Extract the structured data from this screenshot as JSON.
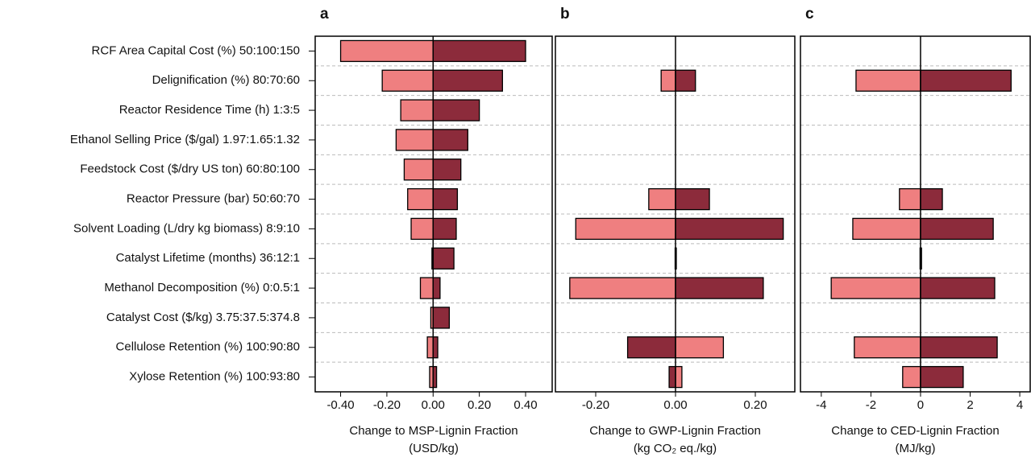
{
  "chart_data": [
    {
      "type": "tornado",
      "panel_label": "a",
      "categories": [
        "RCF Area Capital Cost (%) 50:100:150",
        "Delignification (%) 80:70:60",
        "Reactor Residence Time (h) 1:3:5",
        "Ethanol Selling Price ($/gal) 1.97:1.65:1.32",
        "Feedstock Cost ($/dry US ton) 60:80:100",
        "Reactor Pressure (bar) 50:60:70",
        "Solvent Loading (L/dry kg biomass) 8:9:10",
        "Catalyst Lifetime (months) 36:12:1",
        "Methanol Decomposition (%) 0:0.5:1",
        "Catalyst Cost ($/kg) 3.75:37.5:374.8",
        "Cellulose Retention (%) 100:90:80",
        "Xylose Retention (%) 100:93:80"
      ],
      "xlabel": [
        "Change to MSP-Lignin Fraction",
        "(USD/kg)"
      ],
      "xlim": [
        -0.51,
        0.515
      ],
      "xticks": [
        {
          "value": -0.4,
          "label": "-0.40"
        },
        {
          "value": -0.2,
          "label": "-0.20"
        },
        {
          "value": 0,
          "label": "0.00"
        },
        {
          "value": 0.2,
          "label": "0.20"
        },
        {
          "value": 0.4,
          "label": "0.40"
        }
      ],
      "series": [
        {
          "color": "#ef7f80",
          "values": [
            -0.4,
            -0.22,
            -0.14,
            -0.16,
            -0.125,
            -0.11,
            -0.095,
            -0.005,
            -0.055,
            -0.01,
            -0.025,
            -0.015
          ]
        },
        {
          "color": "#8c2b3b",
          "values": [
            0.4,
            0.3,
            0.2,
            0.15,
            0.12,
            0.105,
            0.1,
            0.09,
            0.03,
            0.07,
            0.02,
            0.015
          ]
        }
      ]
    },
    {
      "type": "tornado",
      "panel_label": "b",
      "xlabel": [
        "Change to GWP-Lignin Fraction",
        "(kg CO₂ eq./kg)"
      ],
      "xlim": [
        -0.301,
        0.299
      ],
      "xticks": [
        {
          "value": -0.2,
          "label": "-0.20"
        },
        {
          "value": 0,
          "label": "0.00"
        },
        {
          "value": 0.2,
          "label": "0.20"
        }
      ],
      "series": [
        {
          "color": "#ef7f80",
          "values": [
            null,
            -0.036,
            null,
            null,
            null,
            -0.067,
            -0.25,
            -0.001,
            -0.265,
            null,
            0.12,
            0.016
          ]
        },
        {
          "color": "#8c2b3b",
          "values": [
            null,
            0.05,
            null,
            null,
            null,
            0.085,
            0.27,
            0.002,
            0.22,
            null,
            -0.12,
            -0.016
          ]
        }
      ]
    },
    {
      "type": "tornado",
      "panel_label": "c",
      "xlabel": [
        "Change to CED-Lignin Fraction",
        "(MJ/kg)"
      ],
      "xlim": [
        -4.84,
        4.42
      ],
      "xticks": [
        -4,
        -2,
        0,
        2,
        4
      ],
      "series": [
        {
          "color": "#ef7f80",
          "values": [
            null,
            -2.6,
            null,
            null,
            null,
            -0.85,
            -2.73,
            -0.02,
            -3.6,
            null,
            -2.67,
            -0.72
          ]
        },
        {
          "color": "#8c2b3b",
          "values": [
            null,
            3.65,
            null,
            null,
            null,
            0.88,
            2.93,
            0.04,
            2.99,
            null,
            3.09,
            1.72
          ]
        }
      ]
    }
  ]
}
